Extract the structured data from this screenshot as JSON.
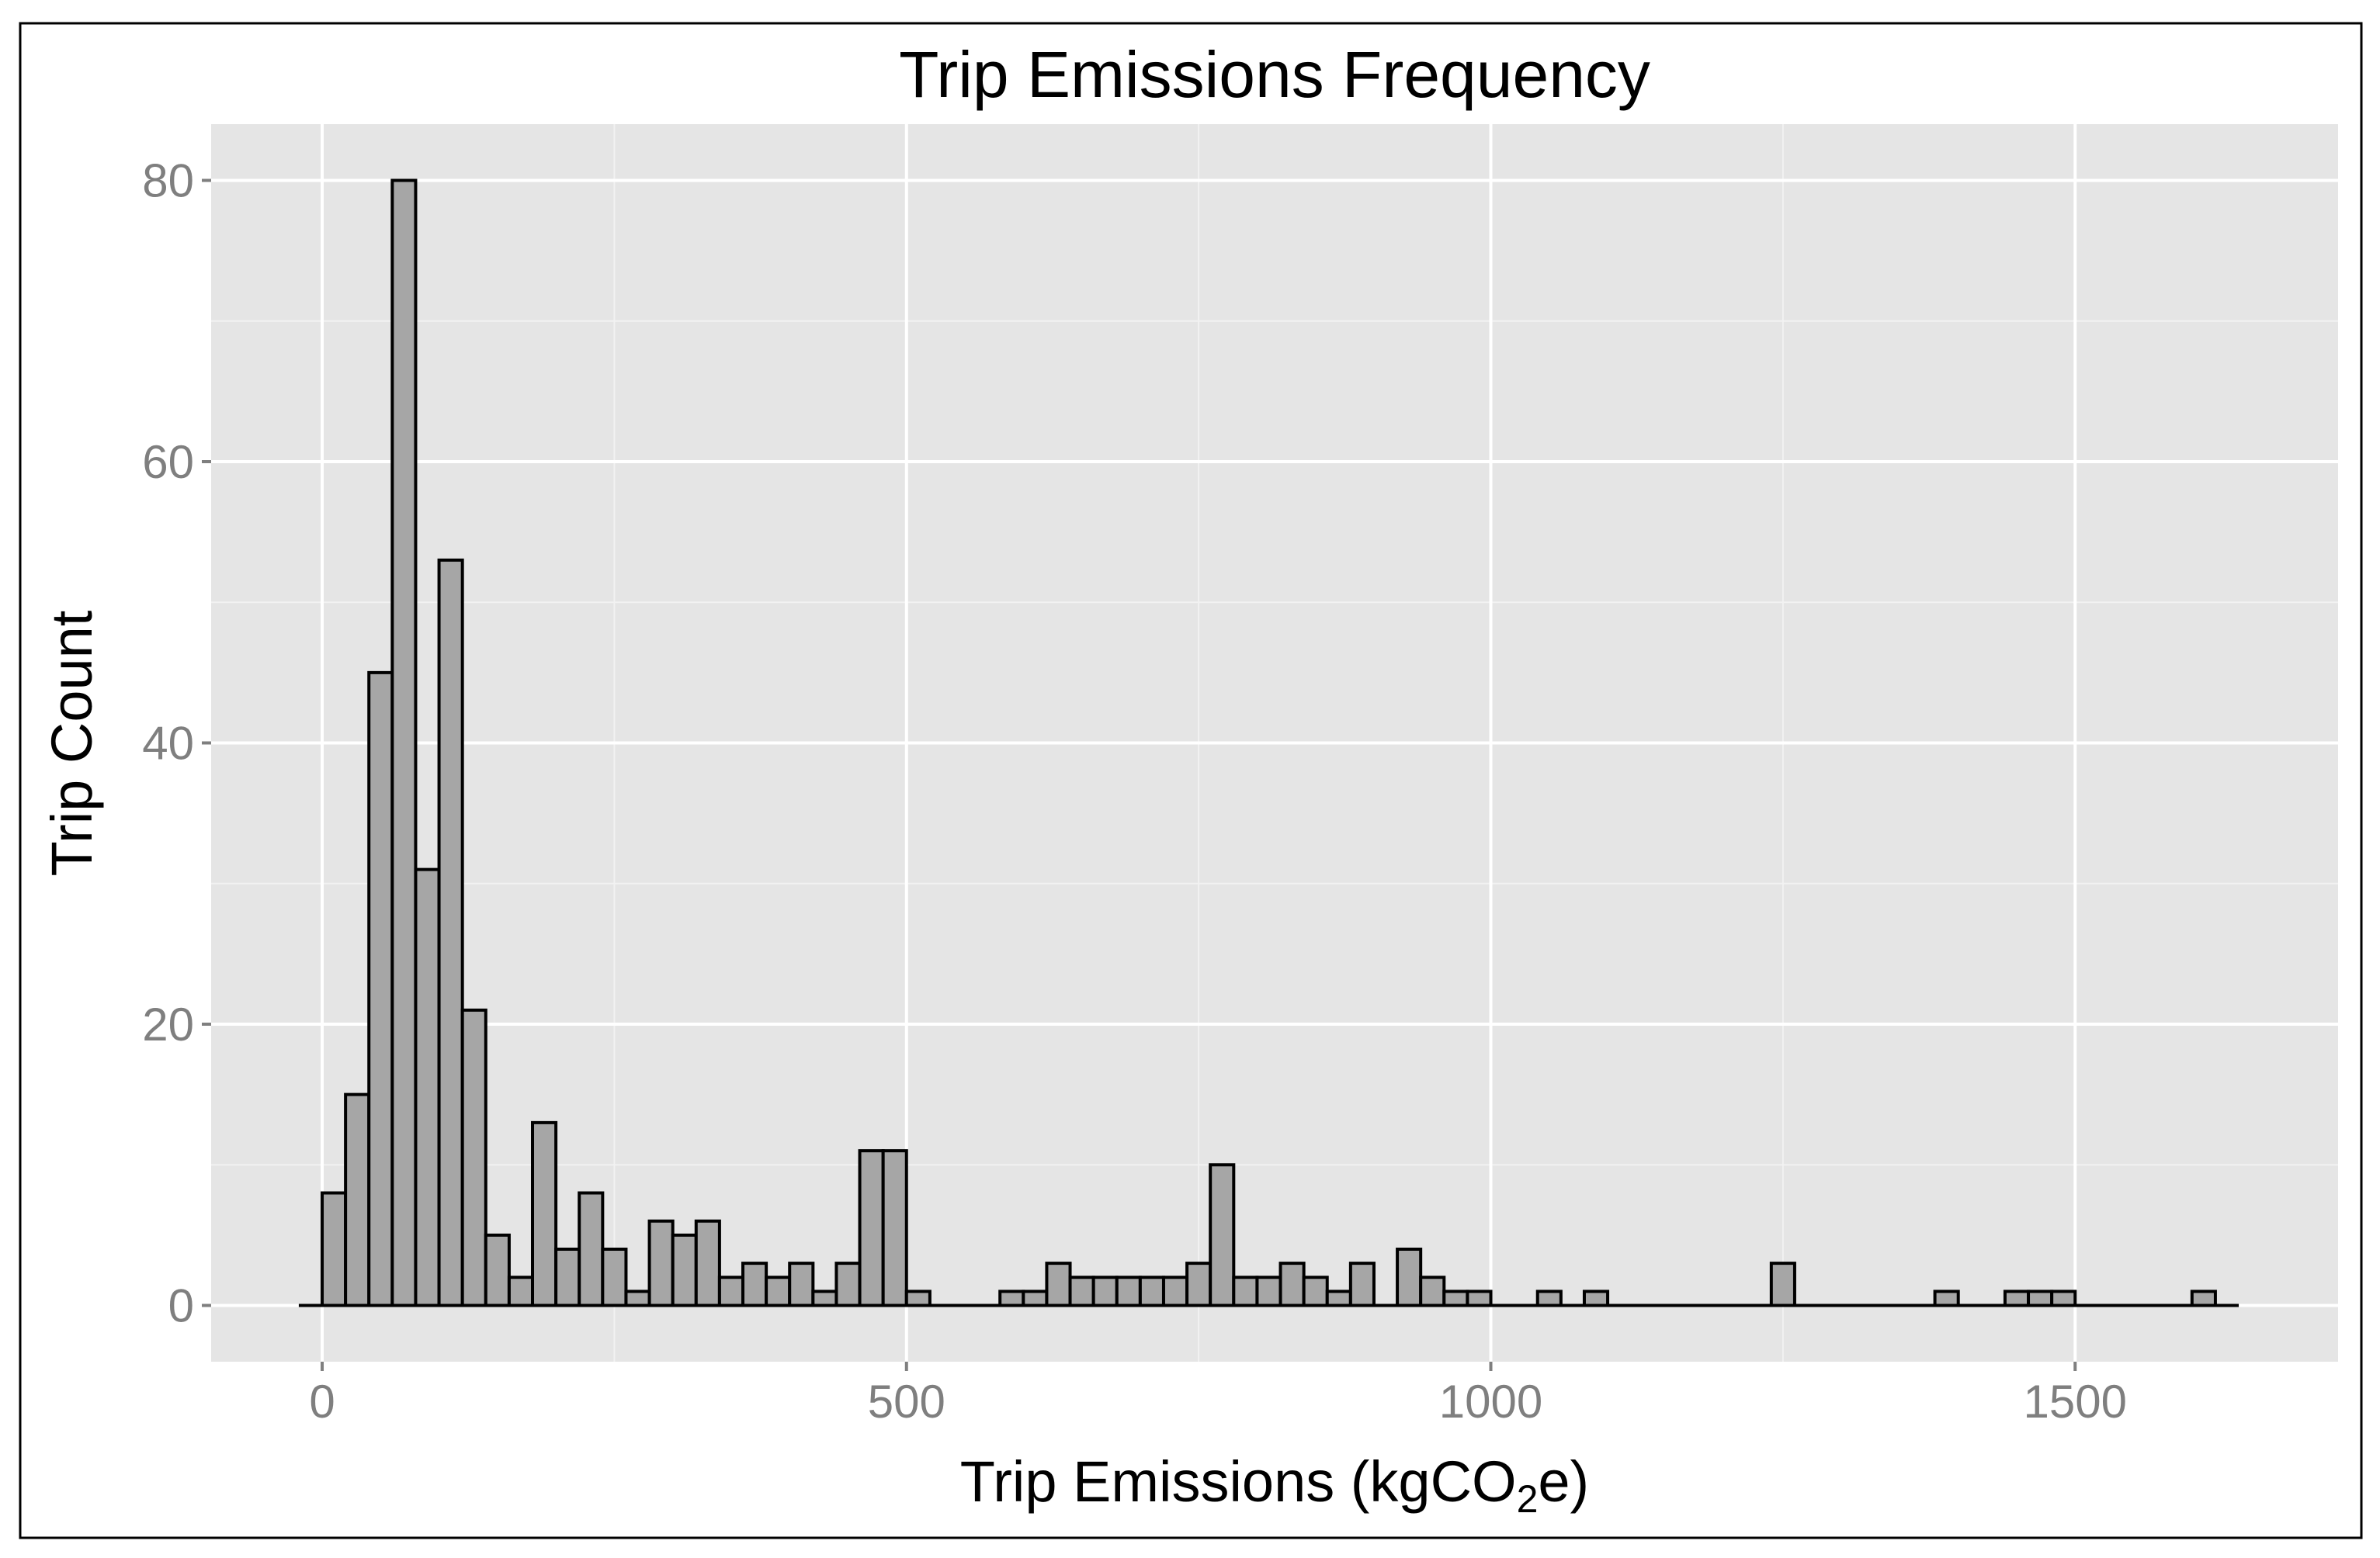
{
  "chart_data": {
    "type": "bar",
    "title": "Trip Emissions Frequency",
    "xlabel": {
      "prefix": "Trip Emissions (kgCO",
      "subscript": "2",
      "suffix": "e)"
    },
    "ylabel": "Trip Count",
    "xlim": [
      -95,
      1725
    ],
    "ylim": [
      -4,
      84
    ],
    "x_ticks": [
      0,
      500,
      1000,
      1500
    ],
    "x_tick_labels": [
      "0",
      "500",
      "1000",
      "1500"
    ],
    "y_ticks": [
      0,
      20,
      40,
      60,
      80
    ],
    "y_tick_labels": [
      "0",
      "20",
      "40",
      "60",
      "80"
    ],
    "bin_width": 20,
    "baseline_range": [
      -20,
      1640
    ],
    "grid": true,
    "legend": "none",
    "bins": [
      {
        "x0": 0,
        "count": 8
      },
      {
        "x0": 20,
        "count": 15
      },
      {
        "x0": 40,
        "count": 45
      },
      {
        "x0": 60,
        "count": 80
      },
      {
        "x0": 80,
        "count": 31
      },
      {
        "x0": 100,
        "count": 53
      },
      {
        "x0": 120,
        "count": 21
      },
      {
        "x0": 140,
        "count": 5
      },
      {
        "x0": 160,
        "count": 2
      },
      {
        "x0": 180,
        "count": 13
      },
      {
        "x0": 200,
        "count": 4
      },
      {
        "x0": 220,
        "count": 8
      },
      {
        "x0": 240,
        "count": 4
      },
      {
        "x0": 260,
        "count": 1
      },
      {
        "x0": 280,
        "count": 6
      },
      {
        "x0": 300,
        "count": 5
      },
      {
        "x0": 320,
        "count": 6
      },
      {
        "x0": 340,
        "count": 2
      },
      {
        "x0": 360,
        "count": 3
      },
      {
        "x0": 380,
        "count": 2
      },
      {
        "x0": 400,
        "count": 3
      },
      {
        "x0": 420,
        "count": 1
      },
      {
        "x0": 440,
        "count": 3
      },
      {
        "x0": 460,
        "count": 11
      },
      {
        "x0": 480,
        "count": 11
      },
      {
        "x0": 500,
        "count": 1
      },
      {
        "x0": 580,
        "count": 1
      },
      {
        "x0": 600,
        "count": 1
      },
      {
        "x0": 620,
        "count": 3
      },
      {
        "x0": 640,
        "count": 2
      },
      {
        "x0": 660,
        "count": 2
      },
      {
        "x0": 680,
        "count": 2
      },
      {
        "x0": 700,
        "count": 2
      },
      {
        "x0": 720,
        "count": 2
      },
      {
        "x0": 740,
        "count": 3
      },
      {
        "x0": 760,
        "count": 10
      },
      {
        "x0": 780,
        "count": 2
      },
      {
        "x0": 800,
        "count": 2
      },
      {
        "x0": 820,
        "count": 3
      },
      {
        "x0": 840,
        "count": 2
      },
      {
        "x0": 860,
        "count": 1
      },
      {
        "x0": 880,
        "count": 3
      },
      {
        "x0": 920,
        "count": 4
      },
      {
        "x0": 940,
        "count": 2
      },
      {
        "x0": 960,
        "count": 1
      },
      {
        "x0": 980,
        "count": 1
      },
      {
        "x0": 1040,
        "count": 1
      },
      {
        "x0": 1080,
        "count": 1
      },
      {
        "x0": 1240,
        "count": 3
      },
      {
        "x0": 1380,
        "count": 1
      },
      {
        "x0": 1440,
        "count": 1
      },
      {
        "x0": 1460,
        "count": 1
      },
      {
        "x0": 1480,
        "count": 1
      },
      {
        "x0": 1600,
        "count": 1
      }
    ],
    "colors": {
      "panel": "#e5e5e5",
      "bar_fill": "#a6a6a6",
      "bar_stroke": "#000000",
      "tick_label": "#7f7f7f"
    }
  }
}
